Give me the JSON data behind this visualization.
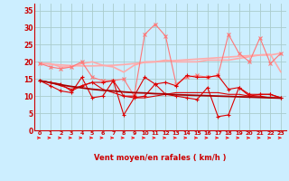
{
  "xlabel": "Vent moyen/en rafales ( km/h )",
  "background_color": "#cceeff",
  "grid_color": "#aacccc",
  "x_ticks": [
    0,
    1,
    2,
    3,
    4,
    5,
    6,
    7,
    8,
    9,
    10,
    11,
    12,
    13,
    14,
    15,
    16,
    17,
    18,
    19,
    20,
    21,
    22,
    23
  ],
  "ylim": [
    0,
    37
  ],
  "yticks": [
    0,
    5,
    10,
    15,
    20,
    25,
    30,
    35
  ],
  "line1_color": "#ffaaaa",
  "line1_y": [
    19.5,
    19.5,
    18.5,
    18.5,
    19.5,
    20.0,
    19.0,
    18.5,
    17.0,
    19.0,
    20.0,
    20.0,
    20.5,
    20.0,
    20.0,
    20.0,
    20.5,
    20.5,
    20.5,
    21.0,
    21.5,
    22.0,
    22.0,
    22.5
  ],
  "line2_color": "#ffaaaa",
  "line2_y": [
    19.5,
    19.3,
    19.1,
    18.9,
    18.8,
    18.8,
    18.9,
    19.0,
    19.2,
    19.5,
    19.8,
    20.0,
    20.2,
    20.4,
    20.6,
    20.8,
    21.0,
    21.2,
    21.4,
    21.6,
    21.8,
    22.0,
    22.2,
    17.0
  ],
  "line3_color": "#ff7777",
  "line3_y": [
    19.5,
    18.5,
    18.0,
    18.5,
    20.0,
    15.5,
    14.5,
    14.5,
    15.0,
    10.0,
    28.0,
    31.0,
    27.5,
    13.5,
    15.5,
    16.0,
    15.5,
    16.0,
    28.0,
    22.5,
    20.0,
    27.0,
    19.5,
    22.5
  ],
  "line4_color": "#dd0000",
  "line4_y": [
    14.5,
    14.0,
    13.5,
    11.5,
    13.0,
    14.0,
    14.0,
    14.5,
    10.0,
    10.0,
    15.5,
    13.5,
    14.0,
    13.0,
    16.0,
    15.5,
    15.5,
    16.0,
    12.0,
    12.5,
    10.5,
    10.5,
    10.5,
    9.5
  ],
  "line5_color": "#dd0000",
  "line5_y": [
    14.5,
    14.0,
    13.0,
    12.0,
    13.0,
    14.0,
    12.0,
    11.0,
    10.0,
    9.5,
    9.5,
    10.0,
    10.5,
    11.0,
    11.0,
    11.0,
    11.0,
    11.0,
    10.5,
    10.5,
    10.0,
    10.0,
    9.5,
    9.5
  ],
  "line6_color": "#aa0000",
  "line6_y": [
    14.5,
    13.9,
    13.3,
    12.8,
    12.4,
    12.0,
    11.7,
    11.5,
    11.2,
    11.0,
    10.9,
    10.7,
    10.6,
    10.4,
    10.3,
    10.2,
    10.1,
    10.0,
    9.9,
    9.8,
    9.7,
    9.6,
    9.5,
    9.4
  ],
  "line7_color": "#dd0000",
  "line7_y": [
    14.5,
    13.0,
    11.5,
    11.0,
    15.5,
    9.5,
    10.0,
    14.5,
    4.5,
    9.5,
    10.0,
    13.5,
    10.5,
    10.0,
    9.5,
    9.0,
    12.5,
    4.0,
    4.5,
    12.5,
    10.0,
    10.5,
    10.5,
    9.5
  ],
  "arrow_color": "#ff0000",
  "tick_color": "#cc0000",
  "label_color": "#cc0000"
}
